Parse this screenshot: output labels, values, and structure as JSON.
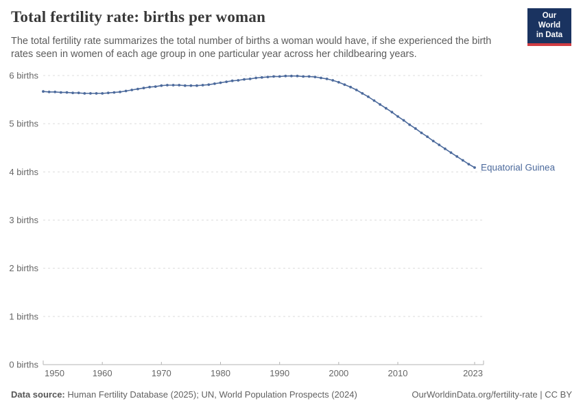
{
  "header": {
    "title": "Total fertility rate: births per woman",
    "subtitle": "The total fertility rate summarizes the total number of births a woman would have, if she experienced the birth rates seen in women of each age group in one particular year across her childbearing years."
  },
  "logo": {
    "line1": "Our World",
    "line2": "in Data",
    "bg_color": "#1a3360",
    "bar_color": "#d13d43"
  },
  "chart_data": {
    "type": "line",
    "title": "Total fertility rate: births per woman",
    "xlabel": "",
    "ylabel": "births",
    "ylim": [
      0,
      6
    ],
    "grid": "dashed-horizontal",
    "legend_position": "end-of-line-label",
    "ytick_labels": [
      "0 births",
      "1 births",
      "2 births",
      "3 births",
      "4 births",
      "5 births",
      "6 births"
    ],
    "yticks": [
      0,
      1,
      2,
      3,
      4,
      5,
      6
    ],
    "xticks": [
      1950,
      1960,
      1970,
      1980,
      1990,
      2000,
      2010,
      2023
    ],
    "xtick_labels": [
      "1950",
      "1960",
      "1970",
      "1980",
      "1990",
      "2000",
      "2010",
      "2023"
    ],
    "x_range": [
      1950,
      2023
    ],
    "series": [
      {
        "name": "Equatorial Guinea",
        "color": "#4c6a9c",
        "x_start": 1950,
        "x_step": 1,
        "values": [
          5.67,
          5.66,
          5.66,
          5.65,
          5.65,
          5.64,
          5.64,
          5.63,
          5.63,
          5.63,
          5.63,
          5.64,
          5.65,
          5.66,
          5.68,
          5.7,
          5.72,
          5.74,
          5.76,
          5.77,
          5.79,
          5.8,
          5.8,
          5.8,
          5.79,
          5.79,
          5.79,
          5.8,
          5.81,
          5.83,
          5.85,
          5.87,
          5.89,
          5.9,
          5.92,
          5.93,
          5.95,
          5.96,
          5.97,
          5.98,
          5.98,
          5.99,
          5.99,
          5.99,
          5.98,
          5.98,
          5.97,
          5.95,
          5.93,
          5.9,
          5.86,
          5.81,
          5.76,
          5.7,
          5.63,
          5.56,
          5.48,
          5.4,
          5.32,
          5.24,
          5.15,
          5.07,
          4.98,
          4.9,
          4.81,
          4.73,
          4.64,
          4.56,
          4.48,
          4.4,
          4.32,
          4.24,
          4.16,
          4.09
        ]
      }
    ],
    "colors": {
      "grid": "#dcdcdc",
      "axis": "#b3b3b3",
      "tick_text": "#666666"
    }
  },
  "footer": {
    "source_label": "Data source:",
    "source_text": " Human Fertility Database (2025); UN, World Population Prospects (2024)",
    "right_text": "OurWorldinData.org/fertility-rate | CC BY"
  }
}
